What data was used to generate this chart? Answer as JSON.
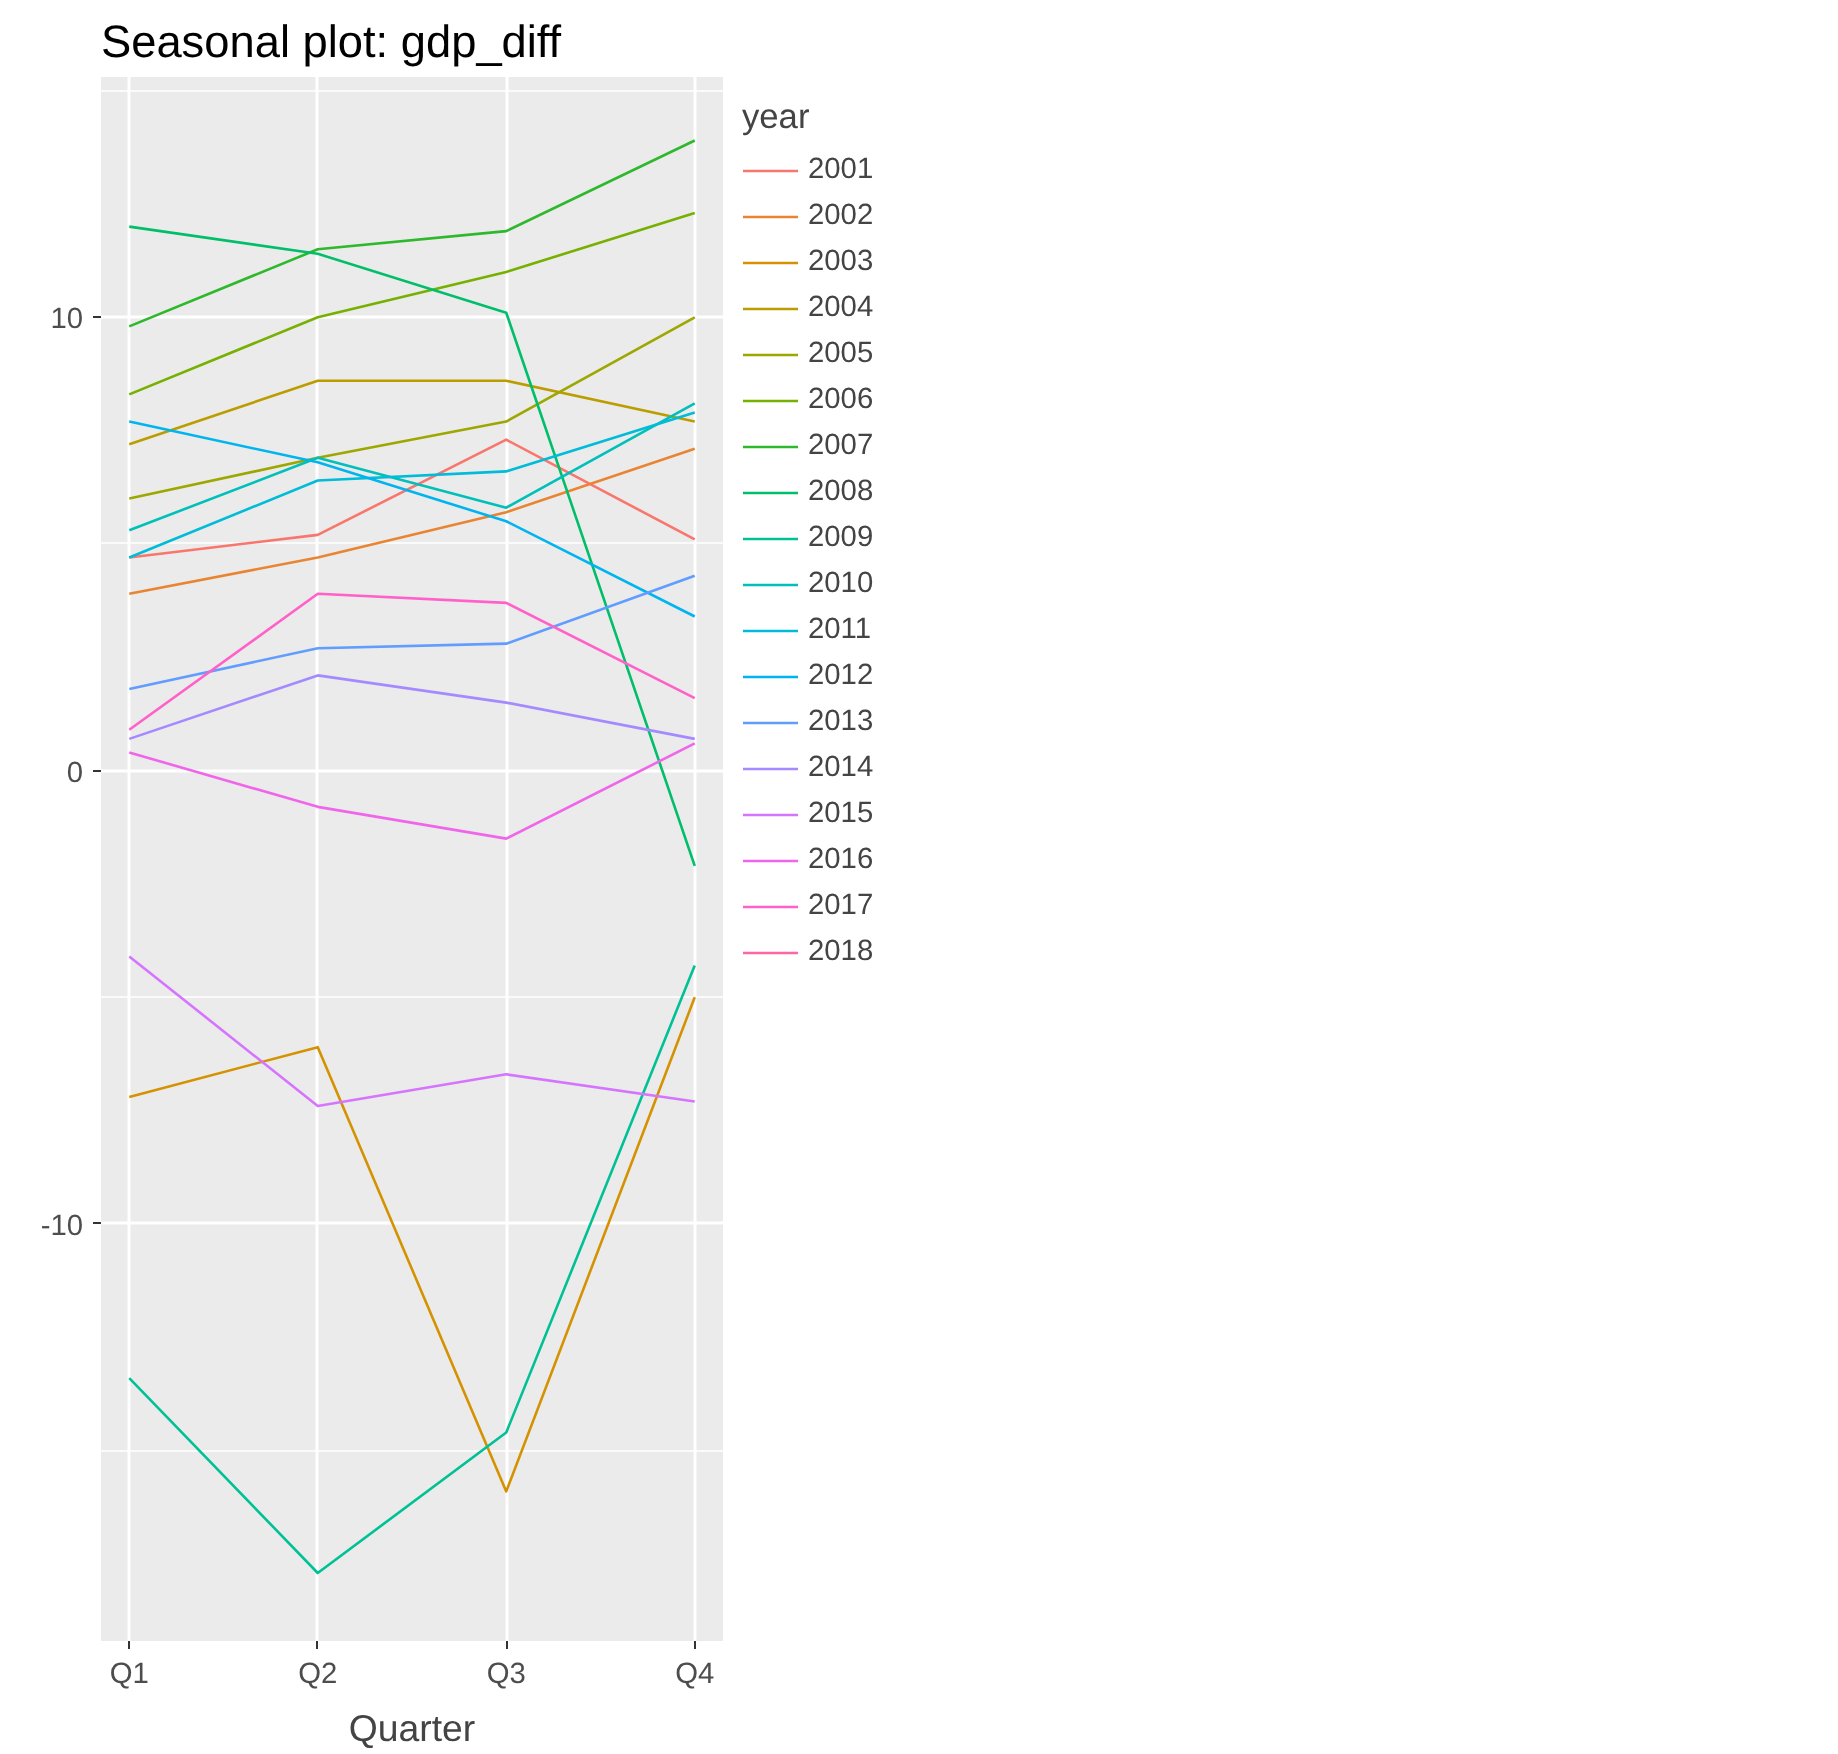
{
  "chart_data": {
    "type": "line",
    "title": "Seasonal plot: gdp_diff",
    "xlabel": "Quarter",
    "legend_title": "year",
    "categories": [
      "Q1",
      "Q2",
      "Q3",
      "Q4"
    ],
    "ylim": [
      -19.2,
      15.3
    ],
    "yticks": [
      -10,
      0,
      10
    ],
    "grid": true,
    "legend": "right",
    "marker": "none",
    "line_style": "solid",
    "series": [
      {
        "name": "2001",
        "color": "#f8766d",
        "values": [
          4.7,
          5.2,
          7.3,
          5.1
        ]
      },
      {
        "name": "2002",
        "color": "#e98532",
        "values": [
          3.9,
          4.7,
          5.7,
          7.1
        ]
      },
      {
        "name": "2003",
        "color": "#d49200",
        "values": [
          -7.2,
          -6.1,
          -15.9,
          -5.0
        ]
      },
      {
        "name": "2004",
        "color": "#bb9d00",
        "values": [
          7.2,
          8.6,
          8.6,
          7.7
        ]
      },
      {
        "name": "2005",
        "color": "#9da700",
        "values": [
          6.0,
          6.9,
          7.7,
          10.0
        ]
      },
      {
        "name": "2006",
        "color": "#76b000",
        "values": [
          8.3,
          10.0,
          11.0,
          12.3
        ]
      },
      {
        "name": "2007",
        "color": "#2eb82c",
        "values": [
          9.8,
          11.5,
          11.9,
          13.9
        ]
      },
      {
        "name": "2008",
        "color": "#00be6a",
        "values": [
          12.0,
          11.4,
          10.1,
          -2.1
        ]
      },
      {
        "name": "2009",
        "color": "#00c195",
        "values": [
          -13.4,
          -17.7,
          -14.6,
          -4.3
        ]
      },
      {
        "name": "2010",
        "color": "#00c0b9",
        "values": [
          5.3,
          6.9,
          5.8,
          8.1
        ]
      },
      {
        "name": "2011",
        "color": "#00bcd8",
        "values": [
          4.7,
          6.4,
          6.6,
          7.9
        ]
      },
      {
        "name": "2012",
        "color": "#00b4ef",
        "values": [
          7.7,
          6.8,
          5.5,
          3.4
        ]
      },
      {
        "name": "2013",
        "color": "#619cff",
        "values": [
          1.8,
          2.7,
          2.8,
          4.3
        ]
      },
      {
        "name": "2014",
        "color": "#a58aff",
        "values": [
          0.7,
          2.1,
          1.5,
          0.7
        ]
      },
      {
        "name": "2015",
        "color": "#d575fe",
        "values": [
          -4.1,
          -7.4,
          -6.7,
          -7.3
        ]
      },
      {
        "name": "2016",
        "color": "#f066ea",
        "values": [
          0.4,
          -0.8,
          -1.5,
          0.6
        ]
      },
      {
        "name": "2017",
        "color": "#ff61c9",
        "values": [
          0.9,
          3.9,
          3.7,
          1.6
        ]
      },
      {
        "name": "2018",
        "color": "#ff67a4",
        "values": [
          null,
          null,
          null,
          null
        ]
      }
    ]
  }
}
